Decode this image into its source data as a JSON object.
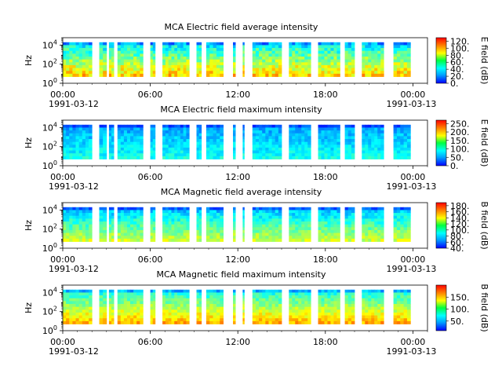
{
  "figure": {
    "panels": [
      {
        "title": "MCA  Electric field average intensity",
        "ylabel": "Hz",
        "ytick_labels": [
          "10",
          "10",
          "10"
        ],
        "ytick_exps": [
          "0",
          "2",
          "4"
        ],
        "xtick_labels": [
          "00:00",
          "06:00",
          "12:00",
          "18:00",
          "00:00"
        ],
        "xdate_labels": [
          "1991-03-12",
          "1991-03-13"
        ],
        "cbar_label": "E field (dB)",
        "cbar_ticks": [
          "0.",
          "20.",
          "40.",
          "60.",
          "80.",
          "100.",
          "120."
        ]
      },
      {
        "title": "MCA  Electric field maximum intensity",
        "ylabel": "Hz",
        "ytick_labels": [
          "10",
          "10",
          "10"
        ],
        "ytick_exps": [
          "0",
          "2",
          "4"
        ],
        "xtick_labels": [
          "00:00",
          "06:00",
          "12:00",
          "18:00",
          "00:00"
        ],
        "xdate_labels": [
          "1991-03-12",
          "1991-03-13"
        ],
        "cbar_label": "E field (dB)",
        "cbar_ticks": [
          "0.",
          "50.",
          "100.",
          "150.",
          "200.",
          "250."
        ]
      },
      {
        "title": "MCA  Magnetic field average intensity",
        "ylabel": "Hz",
        "ytick_labels": [
          "10",
          "10",
          "10"
        ],
        "ytick_exps": [
          "0",
          "2",
          "4"
        ],
        "xtick_labels": [
          "00:00",
          "06:00",
          "12:00",
          "18:00",
          "00:00"
        ],
        "xdate_labels": [
          "1991-03-12",
          "1991-03-13"
        ],
        "cbar_label": "B field (dB)",
        "cbar_ticks": [
          "40.",
          "60.",
          "80.",
          "100.",
          "120.",
          "140.",
          "160.",
          "180."
        ]
      },
      {
        "title": "MCA  Magnetic field maximum intensity",
        "ylabel": "Hz",
        "ytick_labels": [
          "10",
          "10",
          "10"
        ],
        "ytick_exps": [
          "0",
          "2",
          "4"
        ],
        "xtick_labels": [
          "00:00",
          "06:00",
          "12:00",
          "18:00",
          "00:00"
        ],
        "xdate_labels": [
          "1991-03-12",
          "1991-03-13"
        ],
        "cbar_label": "B field (dB)",
        "cbar_ticks": [
          "50.",
          "100.",
          "150."
        ]
      }
    ]
  },
  "chart_data": [
    {
      "type": "heatmap",
      "title": "MCA  Electric field average intensity",
      "ylabel": "Hz",
      "yscale": "log",
      "ylim": [
        1,
        60000
      ],
      "xlim": [
        "1991-03-12T00:00",
        "1991-03-13T01:00"
      ],
      "colorbar": {
        "label": "E field (dB)",
        "range": [
          0,
          130
        ],
        "colormap": "jet"
      },
      "data_intervals_utc": [
        [
          "00:00",
          "02:00"
        ],
        [
          "02:30",
          "03:00"
        ],
        [
          "03:10",
          "03:30"
        ],
        [
          "03:45",
          "05:30"
        ],
        [
          "06:00",
          "06:20"
        ],
        [
          "06:50",
          "08:40"
        ],
        [
          "09:10",
          "09:30"
        ],
        [
          "09:50",
          "11:00"
        ],
        [
          "11:40",
          "11:50"
        ],
        [
          "12:20",
          "12:25"
        ],
        [
          "13:00",
          "15:00"
        ],
        [
          "15:30",
          "17:00"
        ],
        [
          "17:30",
          "19:00"
        ],
        [
          "19:20",
          "20:00"
        ],
        [
          "20:30",
          "22:00"
        ],
        [
          "22:40",
          "23:50"
        ]
      ],
      "freq_range_hz": [
        5,
        20000
      ]
    },
    {
      "type": "heatmap",
      "title": "MCA  Electric field maximum intensity",
      "ylabel": "Hz",
      "yscale": "log",
      "ylim": [
        1,
        60000
      ],
      "xlim": [
        "1991-03-12T00:00",
        "1991-03-13T01:00"
      ],
      "colorbar": {
        "label": "E field (dB)",
        "range": [
          0,
          270
        ],
        "colormap": "jet"
      },
      "data_intervals_utc": [
        [
          "00:00",
          "02:00"
        ],
        [
          "02:30",
          "03:00"
        ],
        [
          "03:10",
          "03:30"
        ],
        [
          "03:45",
          "05:30"
        ],
        [
          "06:00",
          "06:20"
        ],
        [
          "06:50",
          "08:40"
        ],
        [
          "09:10",
          "09:30"
        ],
        [
          "09:50",
          "11:00"
        ],
        [
          "11:40",
          "11:50"
        ],
        [
          "12:20",
          "12:25"
        ],
        [
          "13:00",
          "15:00"
        ],
        [
          "15:30",
          "17:00"
        ],
        [
          "17:30",
          "19:00"
        ],
        [
          "19:20",
          "20:00"
        ],
        [
          "20:30",
          "22:00"
        ],
        [
          "22:40",
          "23:50"
        ]
      ],
      "freq_range_hz": [
        5,
        20000
      ]
    },
    {
      "type": "heatmap",
      "title": "MCA  Magnetic field average intensity",
      "ylabel": "Hz",
      "yscale": "log",
      "ylim": [
        1,
        60000
      ],
      "xlim": [
        "1991-03-12T00:00",
        "1991-03-13T01:00"
      ],
      "colorbar": {
        "label": "B field (dB)",
        "range": [
          40,
          190
        ],
        "colormap": "jet"
      },
      "data_intervals_utc": [
        [
          "00:00",
          "02:00"
        ],
        [
          "02:30",
          "03:00"
        ],
        [
          "03:10",
          "03:30"
        ],
        [
          "03:45",
          "05:30"
        ],
        [
          "06:00",
          "06:20"
        ],
        [
          "06:50",
          "08:40"
        ],
        [
          "09:10",
          "09:30"
        ],
        [
          "09:50",
          "11:00"
        ],
        [
          "11:40",
          "11:50"
        ],
        [
          "12:20",
          "12:25"
        ],
        [
          "13:00",
          "15:00"
        ],
        [
          "15:30",
          "17:00"
        ],
        [
          "17:30",
          "19:00"
        ],
        [
          "19:20",
          "20:00"
        ],
        [
          "20:30",
          "22:00"
        ],
        [
          "22:40",
          "23:50"
        ]
      ],
      "freq_range_hz": [
        5,
        20000
      ]
    },
    {
      "type": "heatmap",
      "title": "MCA  Magnetic field maximum intensity",
      "ylabel": "Hz",
      "yscale": "log",
      "ylim": [
        1,
        60000
      ],
      "xlim": [
        "1991-03-12T00:00",
        "1991-03-13T01:00"
      ],
      "colorbar": {
        "label": "B field (dB)",
        "range": [
          10,
          200
        ],
        "colormap": "jet"
      },
      "data_intervals_utc": [
        [
          "00:00",
          "02:00"
        ],
        [
          "02:30",
          "03:00"
        ],
        [
          "03:10",
          "03:30"
        ],
        [
          "03:45",
          "05:30"
        ],
        [
          "06:00",
          "06:20"
        ],
        [
          "06:50",
          "08:40"
        ],
        [
          "09:10",
          "09:30"
        ],
        [
          "09:50",
          "11:00"
        ],
        [
          "11:40",
          "11:50"
        ],
        [
          "12:20",
          "12:25"
        ],
        [
          "13:00",
          "15:00"
        ],
        [
          "15:30",
          "17:00"
        ],
        [
          "17:30",
          "19:00"
        ],
        [
          "19:20",
          "20:00"
        ],
        [
          "20:30",
          "22:00"
        ],
        [
          "22:40",
          "23:50"
        ]
      ],
      "freq_range_hz": [
        5,
        20000
      ]
    }
  ]
}
